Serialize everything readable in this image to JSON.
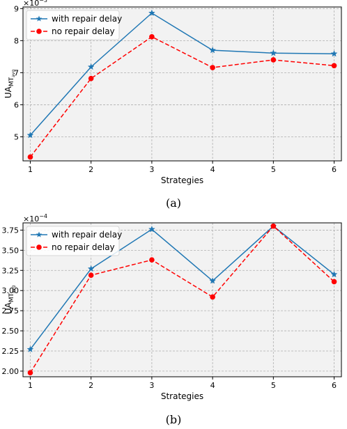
{
  "colors": {
    "with_repair": "#1f77b4",
    "no_repair": "#ff0000",
    "plot_bg": "#f2f2f2",
    "grid": "#b0b0b0"
  },
  "chart_data": [
    {
      "panel": "a",
      "type": "line",
      "caption": "(a)",
      "xlabel": "Strategies",
      "ylabel_base": "UA",
      "ylabel_sub": "MT",
      "ylabel_subsub": "avg",
      "multiplier_base": "×10",
      "multiplier_exp": "−3",
      "x": [
        1,
        2,
        3,
        4,
        5,
        6
      ],
      "xlim": [
        0.88,
        6.12
      ],
      "ylim": [
        4.25,
        9.05
      ],
      "yticks": [
        5,
        6,
        7,
        8,
        9
      ],
      "xticks": [
        1,
        2,
        3,
        4,
        5,
        6
      ],
      "grid": true,
      "legend_position": "top-left",
      "series": [
        {
          "name": "with repair delay",
          "values": [
            5.05,
            7.18,
            8.86,
            7.7,
            7.61,
            7.59
          ],
          "marker": "star",
          "line": "solid"
        },
        {
          "name": "no repair delay",
          "values": [
            4.37,
            6.82,
            8.12,
            7.16,
            7.4,
            7.22
          ],
          "marker": "circle",
          "line": "dashed"
        }
      ]
    },
    {
      "panel": "b",
      "type": "line",
      "caption": "(b)",
      "xlabel": "Strategies",
      "ylabel_base": "UA",
      "ylabel_sub": "MT",
      "ylabel_subsub": "avg",
      "multiplier_base": "×10",
      "multiplier_exp": "−4",
      "x": [
        1,
        2,
        3,
        4,
        5,
        6
      ],
      "xlim": [
        0.88,
        6.12
      ],
      "ylim": [
        1.93,
        3.84
      ],
      "yticks": [
        "2.00",
        "2.25",
        "2.50",
        "2.75",
        "3.00",
        "3.25",
        "3.50",
        "3.75"
      ],
      "xticks": [
        1,
        2,
        3,
        4,
        5,
        6
      ],
      "grid": true,
      "legend_position": "top-left",
      "series": [
        {
          "name": "with repair delay",
          "values": [
            2.27,
            3.27,
            3.76,
            3.12,
            3.8,
            3.2
          ],
          "marker": "star",
          "line": "solid"
        },
        {
          "name": "no repair delay",
          "values": [
            1.98,
            3.19,
            3.38,
            2.92,
            3.8,
            3.11
          ],
          "marker": "circle",
          "line": "dashed"
        }
      ]
    }
  ]
}
